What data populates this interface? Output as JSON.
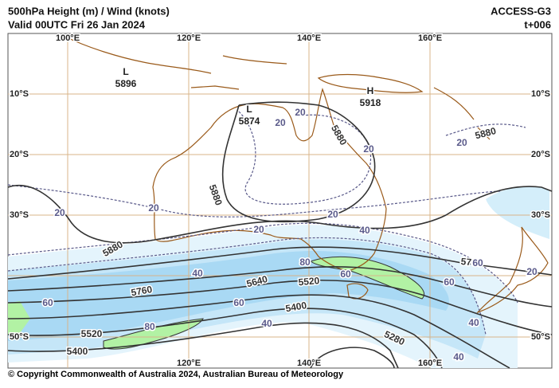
{
  "header": {
    "title": "500hPa Height (m) / Wind (knots)",
    "valid": "Valid 00UTC Fri 26 Jan 2024",
    "model": "ACCESS-G3",
    "lead": "t+006"
  },
  "map": {
    "top_longitudes": [
      "100°E",
      "120°E",
      "140°E",
      "160°E"
    ],
    "bottom_longitudes": [
      "120°E",
      "140°E",
      "160°E"
    ],
    "left_latitudes": [
      "10°S",
      "20°S",
      "30°S",
      "50°S"
    ],
    "right_latitudes": [
      "10°S",
      "20°S",
      "30°S",
      "50°S"
    ],
    "pressure_centers": [
      {
        "type": "L",
        "value": 5896
      },
      {
        "type": "H",
        "value": 5918
      },
      {
        "type": "L",
        "value": 5874
      }
    ],
    "height_labels": [
      5880,
      5880,
      5880,
      5880,
      5760,
      5640,
      5520,
      5400,
      5520,
      5400,
      5280,
      5760
    ],
    "wind_labels": [
      20,
      20,
      20,
      20,
      20,
      20,
      20,
      20,
      20,
      40,
      40,
      40,
      40,
      40,
      60,
      60,
      60,
      60,
      60,
      80,
      80
    ]
  },
  "footer": "© Copyright Commonwealth of Australia 2024, Australian Bureau of Meteorology"
}
